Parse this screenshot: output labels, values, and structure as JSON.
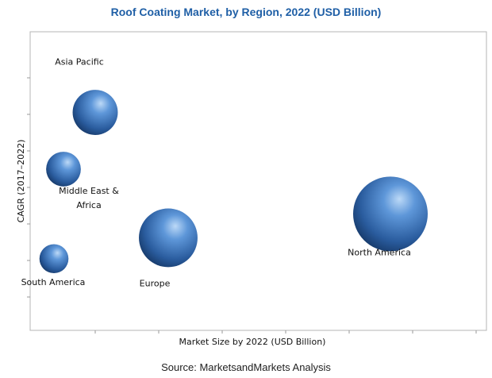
{
  "chart_data": {
    "type": "scatter",
    "title": "Roof Coating Market, by Region, 2022 (USD Billion)",
    "xlabel": "Market Size by 2022 (USD Billion)",
    "ylabel": "CAGR (2017–2022)",
    "x_ticks_labeled": false,
    "y_ticks_labeled": false,
    "grid": false,
    "legend": "none",
    "bubble_color": "#3f73b8",
    "points": [
      {
        "label_lines": [
          "Asia Pacific"
        ],
        "x": 0.2,
        "y": 0.73,
        "size": 0.3
      },
      {
        "label_lines": [
          "Middle East &",
          "Africa"
        ],
        "x": 0.1,
        "y": 0.54,
        "size": 0.15
      },
      {
        "label_lines": [
          "Europe"
        ],
        "x": 0.43,
        "y": 0.31,
        "size": 0.57
      },
      {
        "label_lines": [
          "South America"
        ],
        "x": 0.07,
        "y": 0.24,
        "size": 0.09
      },
      {
        "label_lines": [
          "North America"
        ],
        "x": 1.13,
        "y": 0.39,
        "size": 1.0
      }
    ]
  },
  "source": "Source: MarketsandMarkets Analysis"
}
